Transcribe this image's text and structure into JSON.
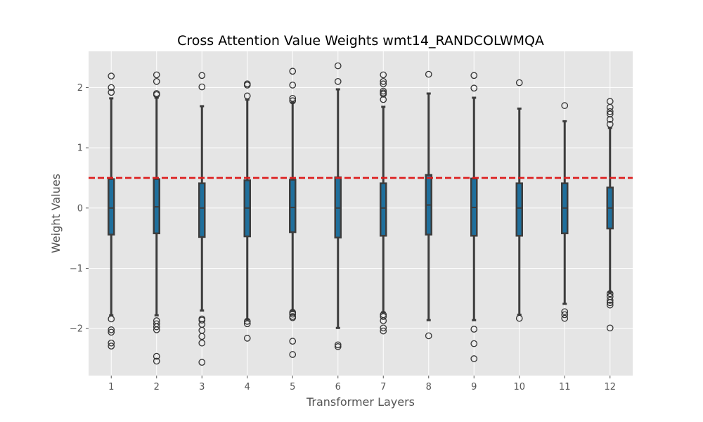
{
  "chart_data": {
    "type": "box",
    "title": "Cross Attention Value Weights wmt14_RANDCOLWMQA",
    "xlabel": "Transformer Layers",
    "ylabel": "Weight Values",
    "categories": [
      "1",
      "2",
      "3",
      "4",
      "5",
      "6",
      "7",
      "8",
      "9",
      "10",
      "11",
      "12"
    ],
    "y_ticks": [
      {
        "value": -2,
        "label": "−2"
      },
      {
        "value": -1,
        "label": "−1"
      },
      {
        "value": 0,
        "label": "0"
      },
      {
        "value": 1,
        "label": "1"
      },
      {
        "value": 2,
        "label": "2"
      }
    ],
    "ylim": [
      -2.78,
      2.6
    ],
    "grid": true,
    "reference_line": {
      "y": 0.5,
      "color": "#dd1c1c",
      "style": "dashed"
    },
    "box_color": "#1f6f9c",
    "boxes": [
      {
        "q1": -0.44,
        "median": 0.0,
        "q3": 0.48,
        "whisker_low": -1.78,
        "whisker_high": 1.82,
        "outliers": [
          2.19,
          2.0,
          1.92,
          -1.84,
          -2.02,
          -2.06,
          -2.24,
          -2.29
        ]
      },
      {
        "q1": -0.42,
        "median": 0.02,
        "q3": 0.48,
        "whisker_low": -1.78,
        "whisker_high": 1.83,
        "outliers": [
          2.21,
          2.1,
          1.9,
          1.88,
          -1.87,
          -1.92,
          -1.97,
          -2.02,
          -2.46,
          -2.54
        ]
      },
      {
        "q1": -0.48,
        "median": 0.0,
        "q3": 0.41,
        "whisker_low": -1.7,
        "whisker_high": 1.69,
        "outliers": [
          2.2,
          2.01,
          -1.84,
          -1.86,
          -1.93,
          -2.03,
          -2.13,
          -2.24,
          -2.56
        ]
      },
      {
        "q1": -0.47,
        "median": 0.0,
        "q3": 0.46,
        "whisker_low": -1.85,
        "whisker_high": 1.8,
        "outliers": [
          2.06,
          2.04,
          1.86,
          -1.88,
          -1.92,
          -2.16
        ]
      },
      {
        "q1": -0.4,
        "median": 0.01,
        "q3": 0.47,
        "whisker_low": -1.71,
        "whisker_high": 1.75,
        "outliers": [
          2.27,
          2.04,
          1.82,
          1.78,
          -1.73,
          -1.76,
          -1.8,
          -1.82,
          -2.21,
          -2.43
        ]
      },
      {
        "q1": -0.49,
        "median": 0.0,
        "q3": 0.51,
        "whisker_low": -1.99,
        "whisker_high": 1.97,
        "outliers": [
          2.36,
          2.1,
          -2.27,
          -2.3
        ]
      },
      {
        "q1": -0.46,
        "median": 0.0,
        "q3": 0.41,
        "whisker_low": -1.73,
        "whisker_high": 1.68,
        "outliers": [
          2.21,
          2.1,
          2.06,
          1.94,
          1.91,
          1.89,
          1.8,
          -1.77,
          -1.8,
          -1.87,
          -1.99,
          -2.04
        ]
      },
      {
        "q1": -0.44,
        "median": 0.05,
        "q3": 0.55,
        "whisker_low": -1.86,
        "whisker_high": 1.9,
        "outliers": [
          2.22,
          -2.12
        ]
      },
      {
        "q1": -0.46,
        "median": 0.01,
        "q3": 0.49,
        "whisker_low": -1.86,
        "whisker_high": 1.83,
        "outliers": [
          2.2,
          1.99,
          -2.01,
          -2.25,
          -2.5
        ]
      },
      {
        "q1": -0.46,
        "median": 0.0,
        "q3": 0.41,
        "whisker_low": -1.77,
        "whisker_high": 1.65,
        "outliers": [
          2.08,
          -1.83
        ]
      },
      {
        "q1": -0.42,
        "median": 0.0,
        "q3": 0.41,
        "whisker_low": -1.59,
        "whisker_high": 1.44,
        "outliers": [
          1.7,
          -1.72,
          -1.77,
          -1.83
        ]
      },
      {
        "q1": -0.34,
        "median": 0.0,
        "q3": 0.34,
        "whisker_low": -1.4,
        "whisker_high": 1.33,
        "outliers": [
          1.77,
          1.67,
          1.6,
          1.56,
          1.47,
          1.39,
          -1.42,
          -1.47,
          -1.53,
          -1.57,
          -1.61,
          -1.99
        ]
      }
    ]
  }
}
